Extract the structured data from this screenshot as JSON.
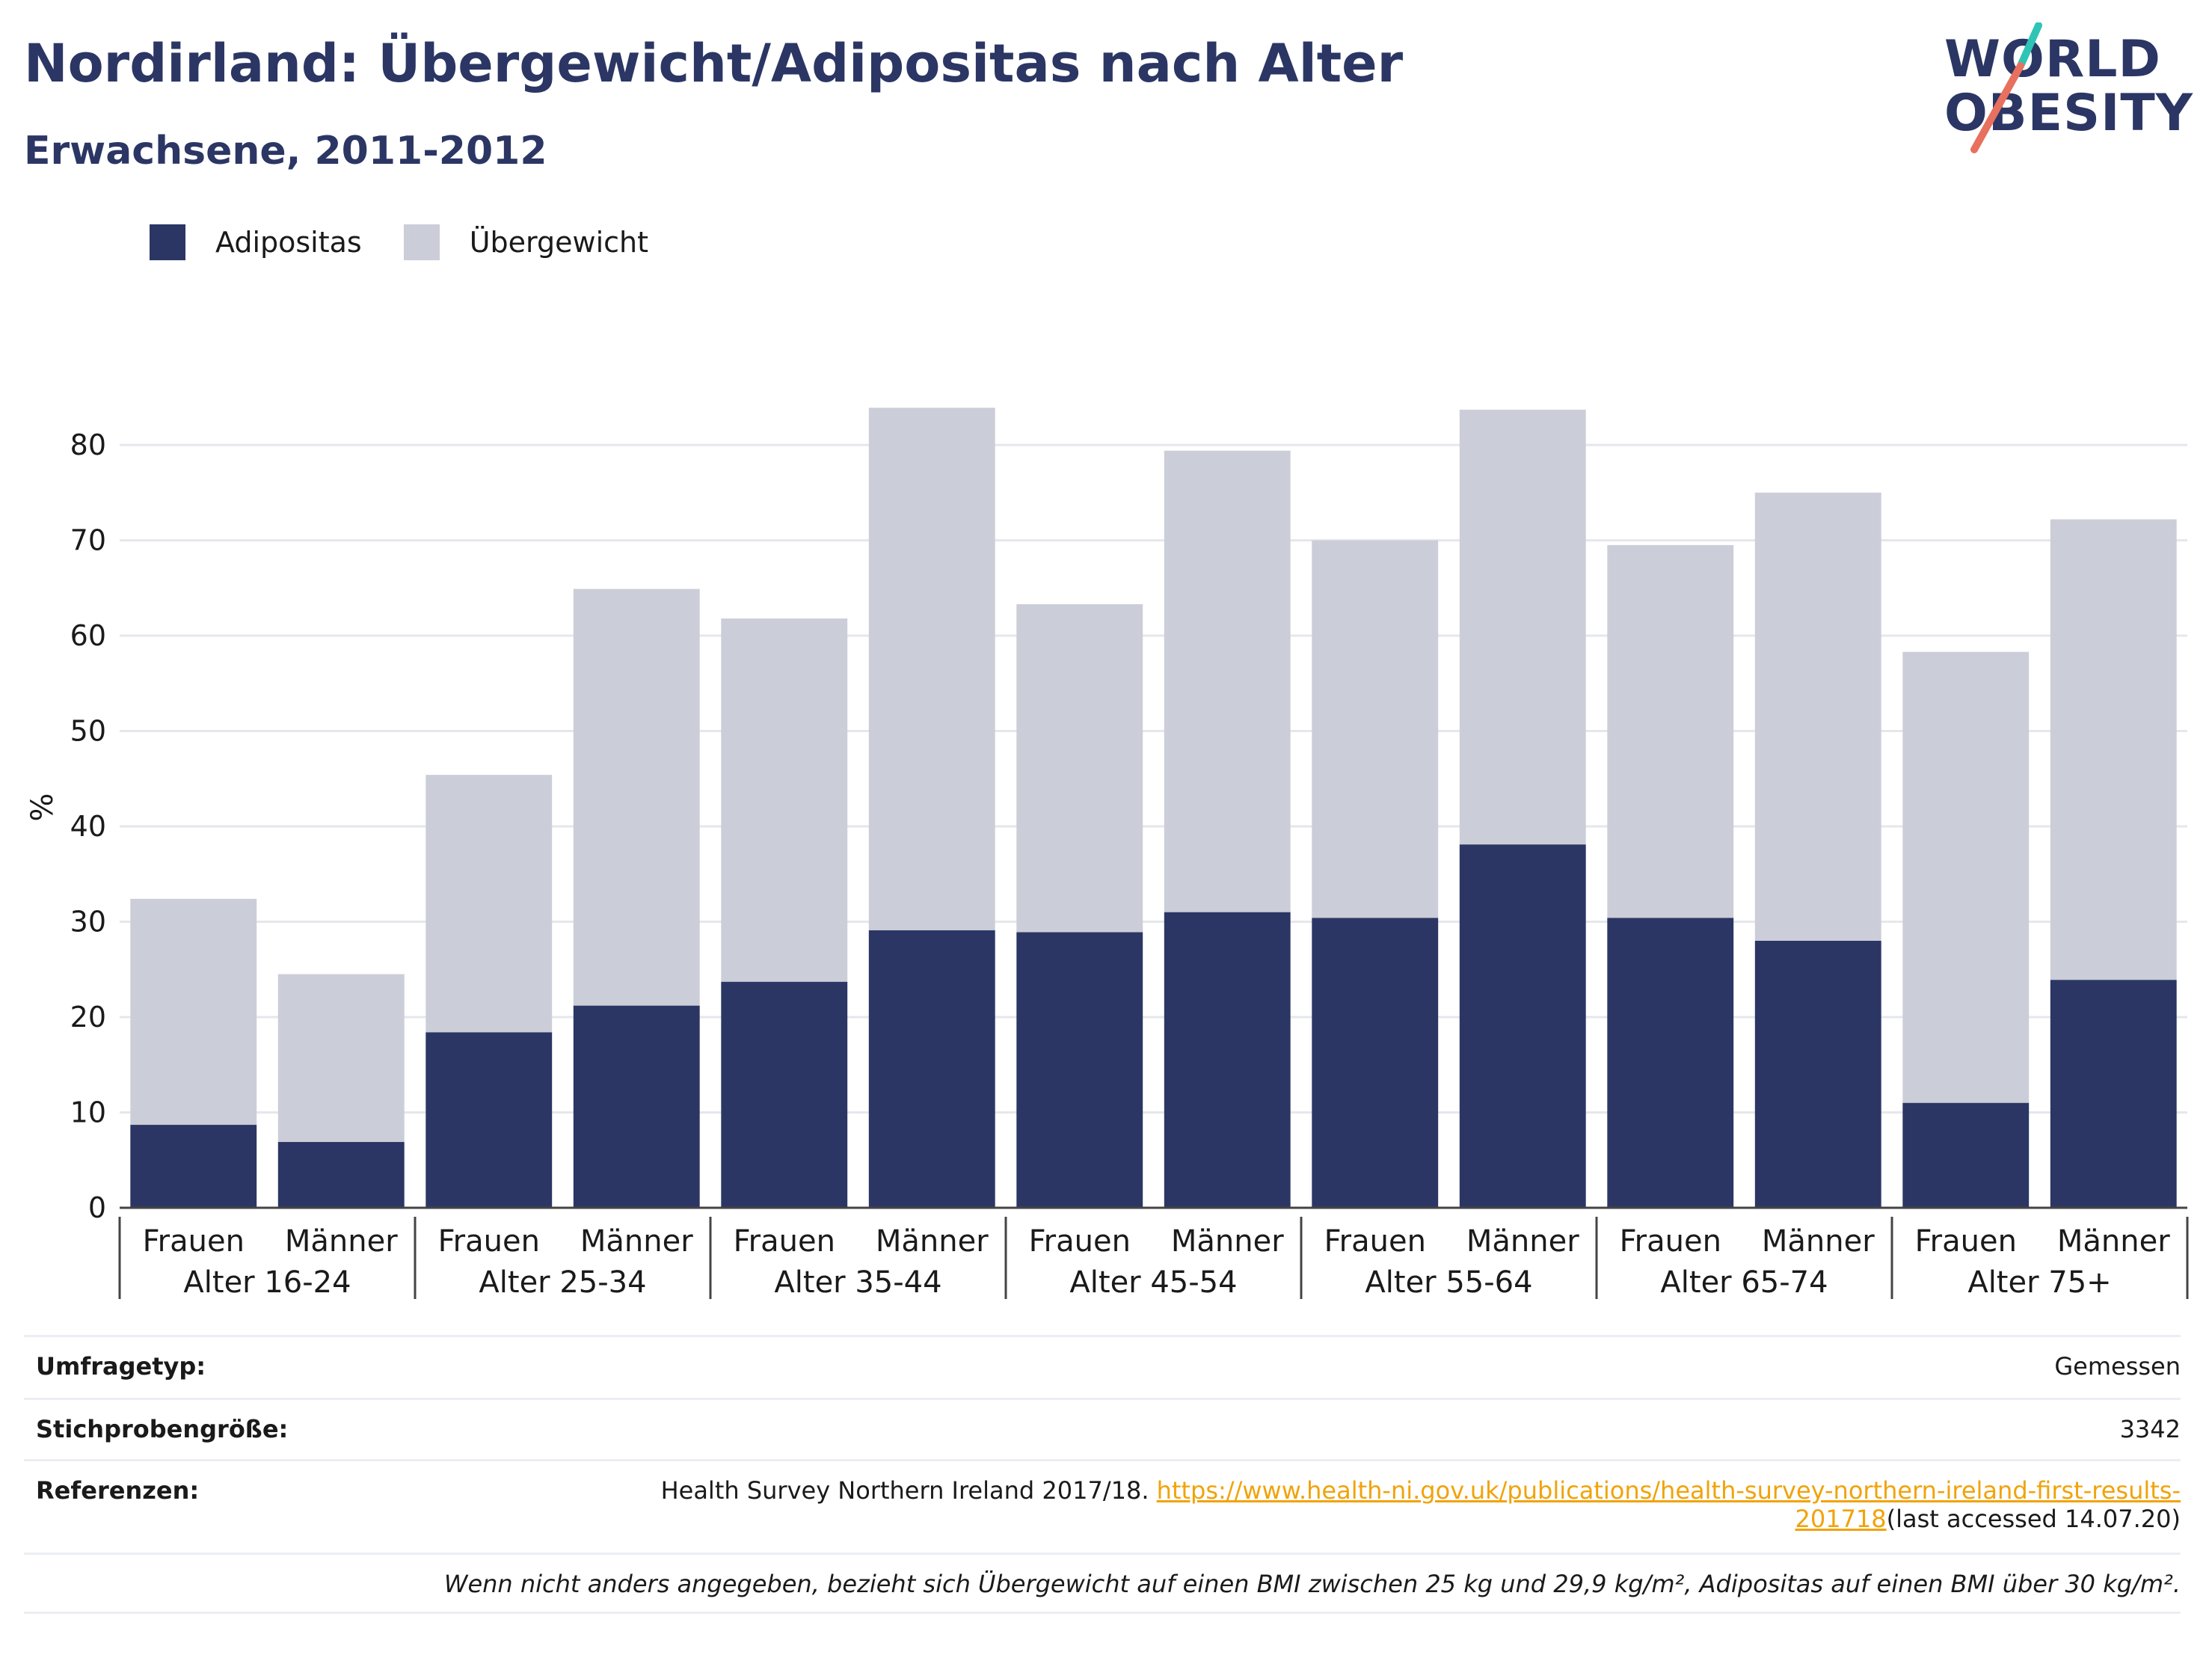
{
  "header": {
    "title": "Nordirland: Übergewicht/Adipositas nach Alter",
    "subtitle": "Erwachsene, 2011-2012"
  },
  "logo": {
    "line1": "WORLD",
    "line2": "OBESITY",
    "accent_colors": [
      "#2ec4b6",
      "#e8705f"
    ]
  },
  "colors": {
    "adipositas": "#2b3664",
    "uebergewicht": "#cbcdd8",
    "link": "#f0a30a",
    "text": "#2b3664"
  },
  "chart_data": {
    "type": "bar",
    "stacked": true,
    "ylabel": "%",
    "ylim": [
      0,
      85
    ],
    "yticks": [
      0,
      10,
      20,
      30,
      40,
      50,
      60,
      70,
      80
    ],
    "grid": true,
    "legend": "top-left",
    "groups": [
      "Alter 16-24",
      "Alter 25-34",
      "Alter 35-44",
      "Alter 45-54",
      "Alter 55-64",
      "Alter 65-74",
      "Alter 75+"
    ],
    "categories": [
      "Frauen",
      "Männer",
      "Frauen",
      "Männer",
      "Frauen",
      "Männer",
      "Frauen",
      "Männer",
      "Frauen",
      "Männer",
      "Frauen",
      "Männer",
      "Frauen",
      "Männer"
    ],
    "series": [
      {
        "name": "Adipositas",
        "values": [
          8.7,
          6.9,
          18.4,
          21.2,
          23.7,
          29.1,
          28.9,
          31.0,
          30.4,
          38.1,
          30.4,
          28.0,
          11.0,
          23.9
        ]
      },
      {
        "name": "Übergewicht",
        "values": [
          23.7,
          17.6,
          27.0,
          43.7,
          38.1,
          54.8,
          34.4,
          48.4,
          39.6,
          45.6,
          39.1,
          47.0,
          47.3,
          48.3
        ]
      }
    ]
  },
  "info": {
    "rows": [
      {
        "key": "Umfragetyp:",
        "value": "Gemessen"
      },
      {
        "key": "Stichprobengröße:",
        "value": "3342"
      }
    ],
    "ref_key": "Referenzen:",
    "ref_text": "Health Survey Northern Ireland 2017/18.",
    "ref_link_1": "https://www.health-ni.gov.uk/publications/health-survey-northern-ireland-first-results-",
    "ref_link_2": "201718",
    "ref_suffix": "(last accessed 14.07.20)",
    "note": "Wenn nicht anders angegeben, bezieht sich Übergewicht auf einen BMI zwischen 25 kg und 29,9 kg/m², Adipositas auf einen BMI über 30 kg/m²."
  }
}
